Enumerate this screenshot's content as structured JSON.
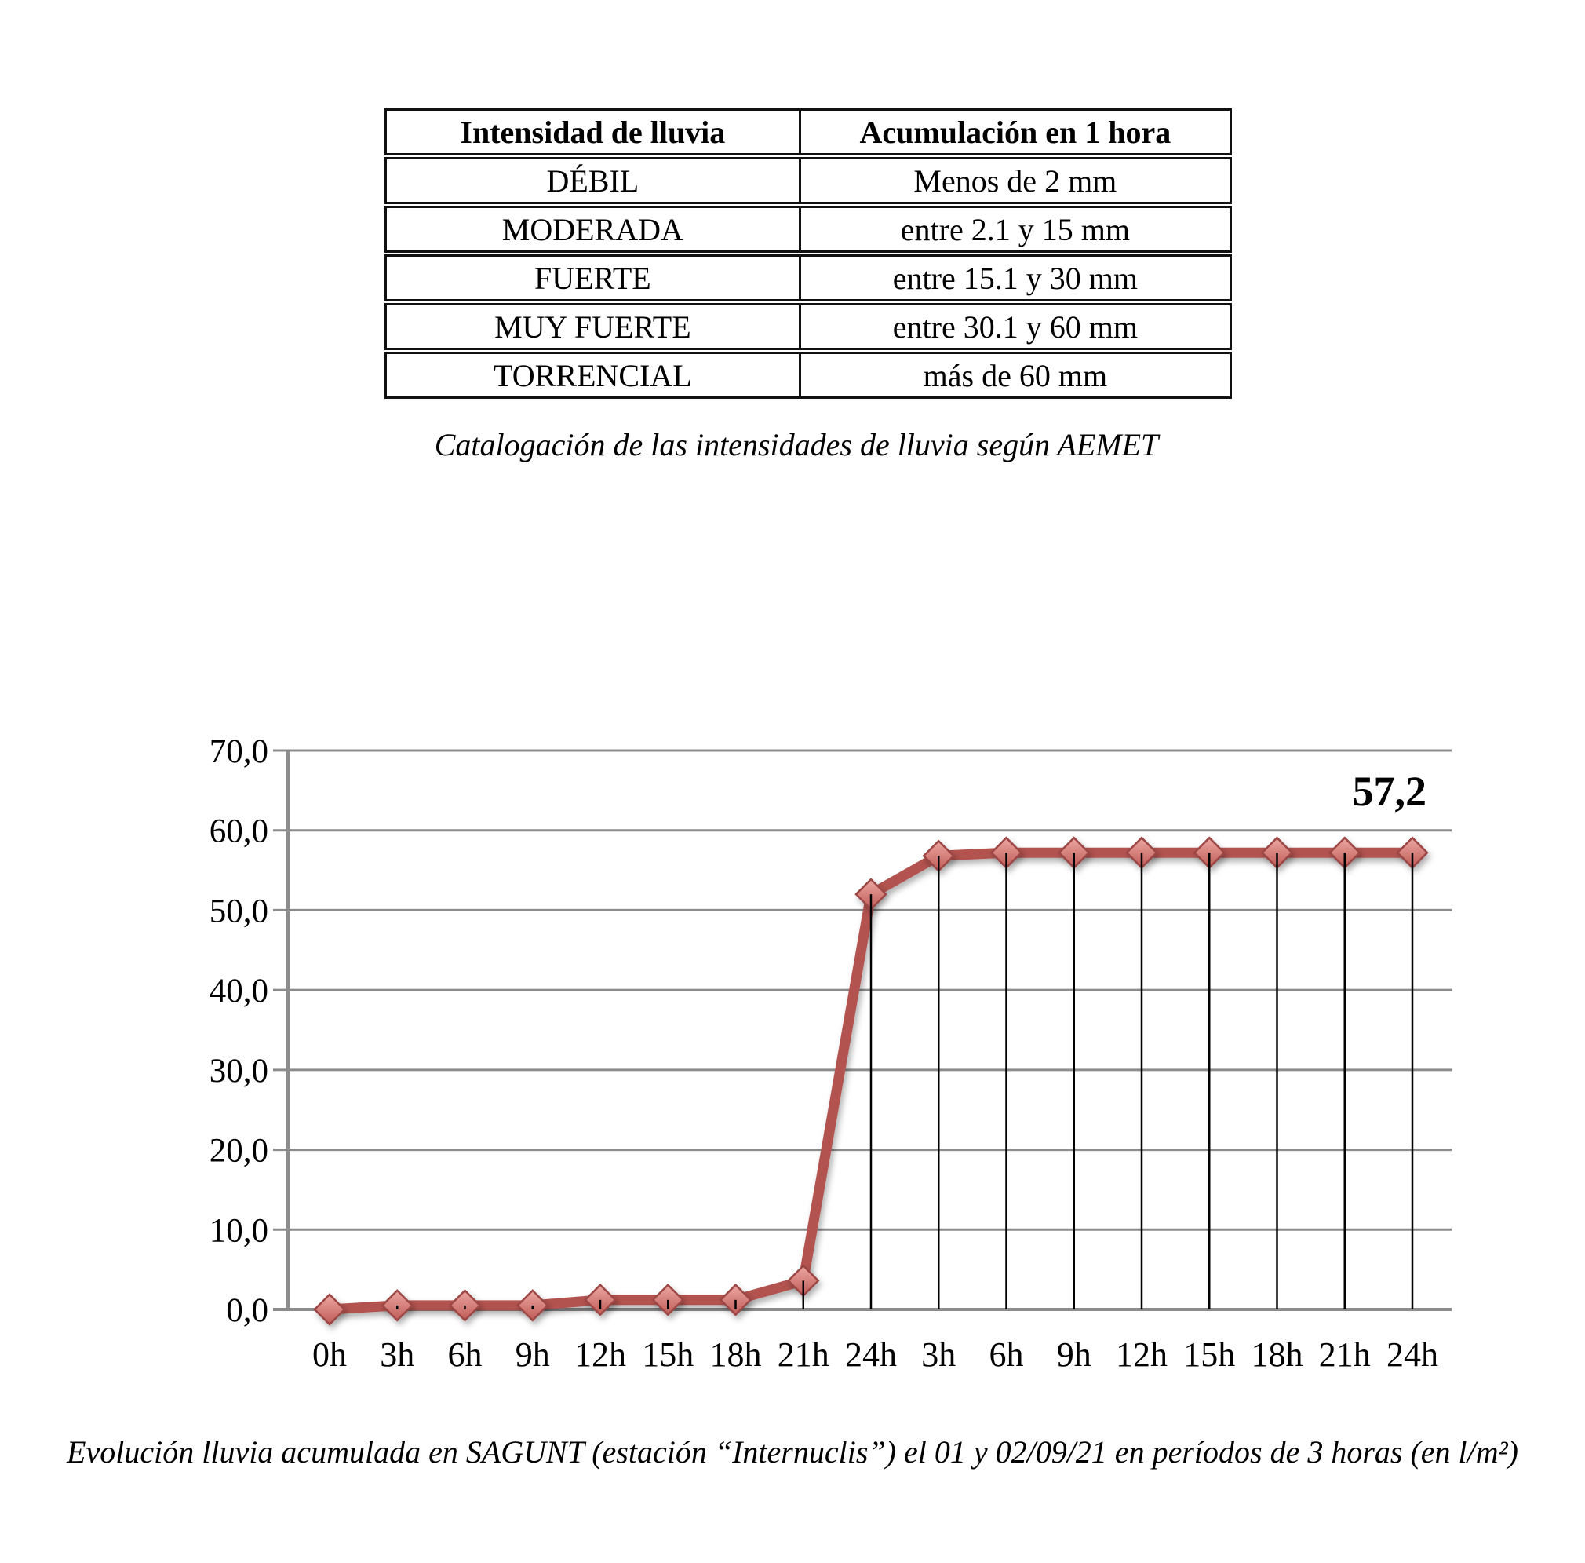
{
  "table": {
    "headers": [
      "Intensidad de lluvia",
      "Acumulación en 1 hora"
    ],
    "rows": [
      [
        "DÉBIL",
        "Menos de 2 mm"
      ],
      [
        "MODERADA",
        "entre 2.1 y 15 mm"
      ],
      [
        "FUERTE",
        "entre 15.1 y 30 mm"
      ],
      [
        "MUY FUERTE",
        "entre 30.1 y 60 mm"
      ],
      [
        "TORRENCIAL",
        "más de 60 mm"
      ]
    ]
  },
  "table_caption": "Catalogación de las intensidades de lluvia según AEMET",
  "chart_caption": "Evolución lluvia acumulada en SAGUNT (estación “Internuclis”) el 01 y 02/09/21 en períodos de 3 horas (en l/m²)",
  "chart_data": {
    "type": "line",
    "categories": [
      "0h",
      "3h",
      "6h",
      "9h",
      "12h",
      "15h",
      "18h",
      "21h",
      "24h",
      "3h",
      "6h",
      "9h",
      "12h",
      "15h",
      "18h",
      "21h",
      "24h"
    ],
    "values": [
      0.0,
      0.5,
      0.5,
      0.5,
      1.2,
      1.2,
      1.2,
      3.6,
      52.0,
      56.8,
      57.2,
      57.2,
      57.2,
      57.2,
      57.2,
      57.2,
      57.2
    ],
    "end_label": "57,2",
    "ylim": [
      0,
      70
    ],
    "ytick_step": 10,
    "ytick_labels": [
      "0,0",
      "10,0",
      "20,0",
      "30,0",
      "40,0",
      "50,0",
      "60,0",
      "70,0"
    ],
    "grid": true,
    "legend": "none",
    "marker": "diamond",
    "drop_lines": true,
    "colors": {
      "line": "#B2534F",
      "marker_fill_top": "#ECA8A3",
      "marker_fill_bottom": "#C05B57",
      "marker_stroke": "#9C4745",
      "grid": "#8C8C8C",
      "drop_line": "#000000",
      "label": "#000000"
    }
  }
}
